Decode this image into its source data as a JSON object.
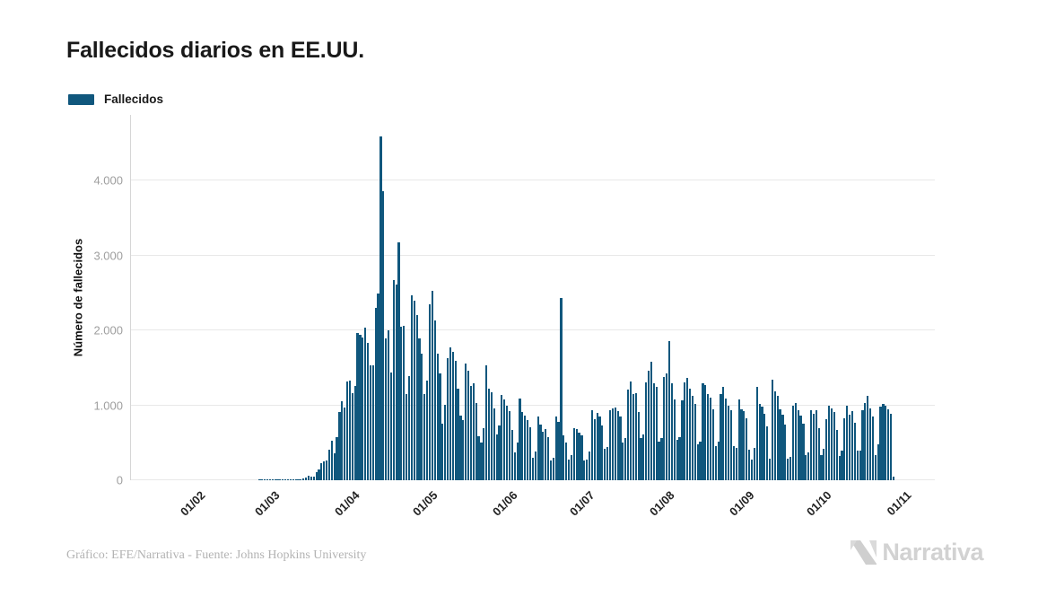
{
  "title": "Fallecidos diarios en EE.UU.",
  "legend": {
    "label": "Fallecidos",
    "color": "#10577D"
  },
  "y_axis": {
    "title": "Número de fallecidos",
    "tick_labels": [
      "0",
      "1.000",
      "2.000",
      "3.000",
      "4.000"
    ],
    "tick_values": [
      0,
      1000,
      2000,
      3000,
      4000
    ]
  },
  "x_axis": {
    "tick_labels": [
      "01/02",
      "01/03",
      "01/04",
      "01/05",
      "01/06",
      "01/07",
      "01/08",
      "01/09",
      "01/10",
      "01/11"
    ]
  },
  "footer": {
    "credit": "Gráfico: EFE/Narrativa - Fuente: Johns Hopkins University"
  },
  "logo": {
    "text": "Narrativa"
  },
  "chart_data": {
    "type": "bar",
    "title": "Fallecidos diarios en EE.UU.",
    "xlabel": "",
    "ylabel": "Número de fallecidos",
    "ylim": [
      0,
      4875
    ],
    "grid": true,
    "legend_position": "top-left",
    "bar_color": "#10577D",
    "series_name": "Fallecidos",
    "start_date": "2020-01-22",
    "end_date": "2020-11-01",
    "x_tick_dates": [
      "2020-02-01",
      "2020-03-01",
      "2020-04-01",
      "2020-05-01",
      "2020-06-01",
      "2020-07-01",
      "2020-08-01",
      "2020-09-01",
      "2020-10-01",
      "2020-11-01"
    ],
    "values": [
      0,
      0,
      0,
      0,
      0,
      0,
      0,
      0,
      0,
      0,
      0,
      0,
      0,
      0,
      0,
      0,
      0,
      0,
      0,
      0,
      0,
      0,
      0,
      0,
      0,
      0,
      0,
      0,
      0,
      0,
      0,
      0,
      0,
      0,
      0,
      0,
      0,
      0,
      1,
      1,
      5,
      3,
      4,
      3,
      3,
      4,
      3,
      4,
      4,
      8,
      3,
      8,
      9,
      11,
      18,
      23,
      41,
      57,
      49,
      46,
      111,
      140,
      225,
      247,
      268,
      411,
      525,
      363,
      573,
      912,
      1049,
      968,
      1321,
      1331,
      1165,
      1255,
      1970,
      1940,
      1906,
      2035,
      1830,
      1528,
      1535,
      2299,
      2494,
      4591,
      3857,
      1891,
      1997,
      1433,
      2674,
      2613,
      3179,
      2052,
      2065,
      1154,
      1384,
      2470,
      2390,
      2201,
      1897,
      1691,
      1154,
      1324,
      2350,
      2528,
      2129,
      1687,
      1422,
      753,
      1008,
      1630,
      1772,
      1715,
      1595,
      1218,
      865,
      808,
      1552,
      1461,
      1263,
      1293,
      1035,
      592,
      500,
      693,
      1534,
      1223,
      1175,
      960,
      605,
      730,
      1134,
      1083,
      995,
      921,
      670,
      372,
      500,
      1093,
      906,
      868,
      802,
      702,
      300,
      380,
      851,
      738,
      650,
      680,
      580,
      267,
      295,
      850,
      775,
      2437,
      600,
      500,
      270,
      330,
      700,
      680,
      640,
      600,
      260,
      270,
      380,
      930,
      820,
      900,
      850,
      730,
      420,
      440,
      935,
      955,
      970,
      920,
      850,
      500,
      560,
      1210,
      1320,
      1150,
      1160,
      910,
      560,
      610,
      1310,
      1465,
      1585,
      1290,
      1240,
      515,
      560,
      1380,
      1430,
      1860,
      1290,
      1080,
      540,
      580,
      1070,
      1300,
      1360,
      1220,
      1130,
      1020,
      480,
      510,
      1290,
      1270,
      1150,
      1100,
      950,
      450,
      510,
      1150,
      1240,
      1090,
      1000,
      930,
      460,
      430,
      1080,
      950,
      920,
      830,
      410,
      280,
      430,
      1250,
      1020,
      980,
      890,
      720,
      290,
      1340,
      1190,
      1130,
      950,
      870,
      740,
      290,
      310,
      990,
      1030,
      930,
      860,
      760,
      340,
      370,
      940,
      890,
      940,
      700,
      330,
      420,
      810,
      990,
      960,
      910,
      670,
      320,
      390,
      830,
      990,
      880,
      920,
      770,
      390,
      400,
      930,
      1030,
      1120,
      960,
      850,
      340,
      480,
      980,
      1020,
      1000,
      950,
      885,
      52
    ]
  }
}
